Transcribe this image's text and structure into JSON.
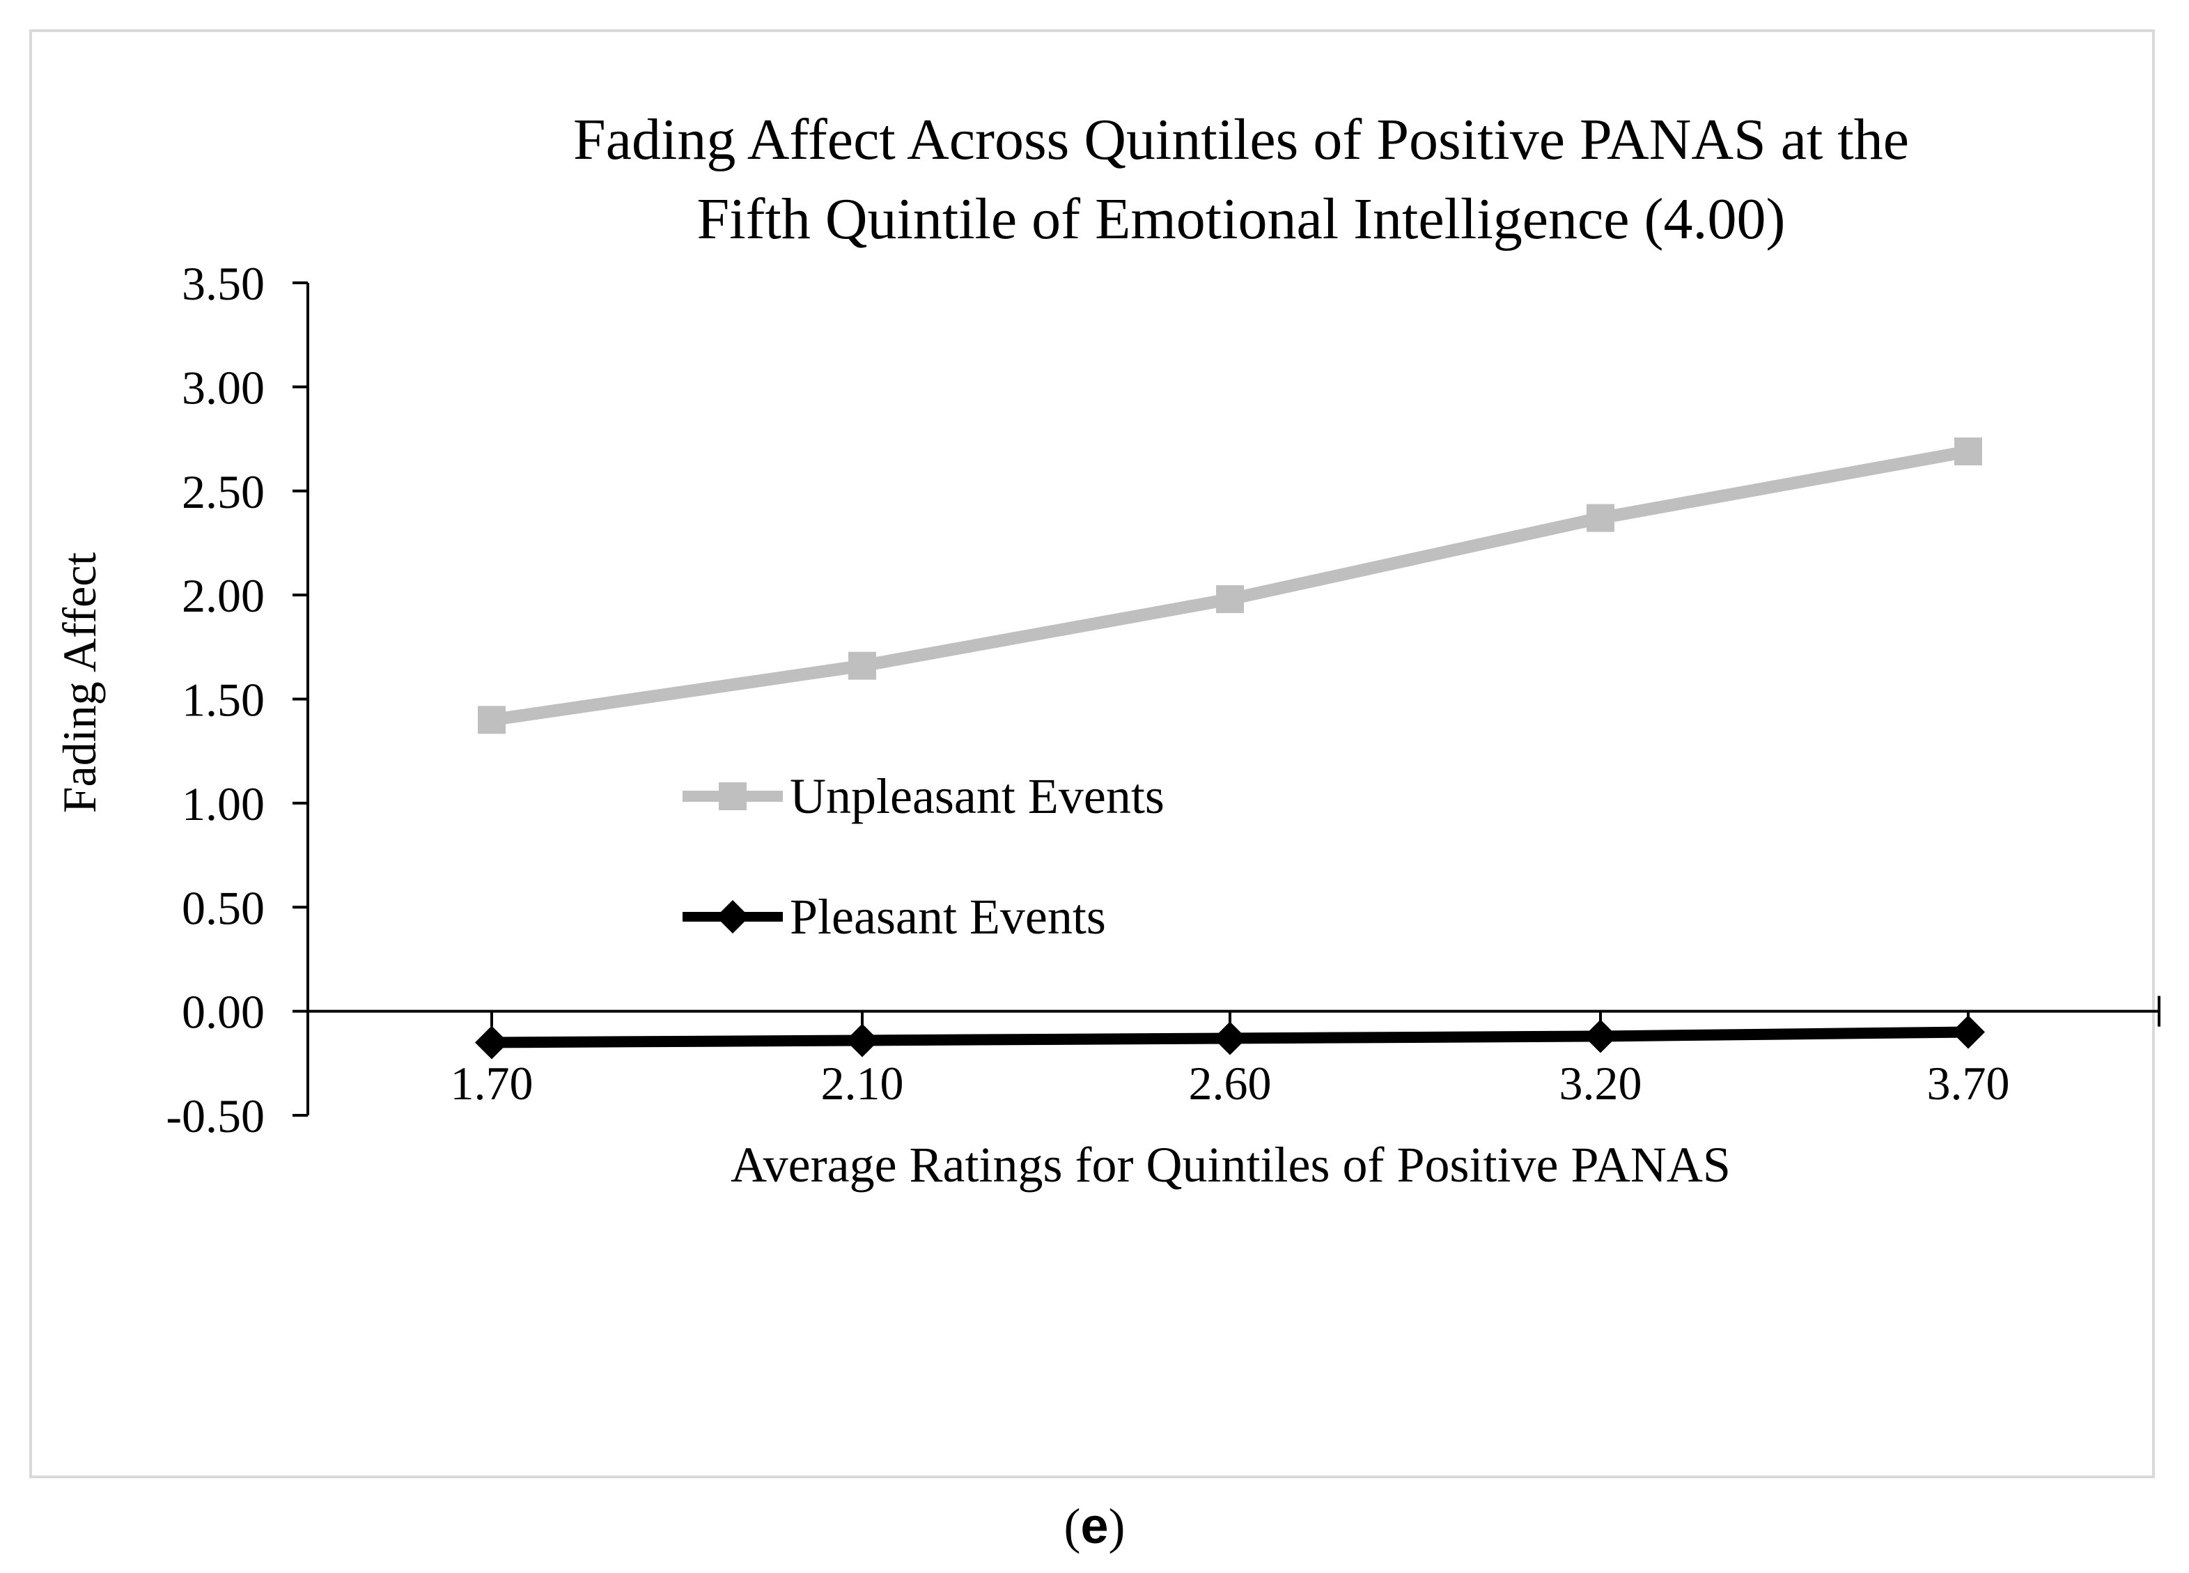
{
  "chart_data": {
    "type": "line",
    "title_lines": [
      "Fading Affect Across Quintiles of Positive PANAS at the",
      "Fifth Quintile of Emotional Intelligence (4.00)"
    ],
    "xlabel": "Average Ratings for Quintiles of Positive PANAS",
    "ylabel": "Fading Affect",
    "categories": [
      "1.70",
      "2.10",
      "2.60",
      "3.20",
      "3.70"
    ],
    "y_ticks": [
      "3.50",
      "3.00",
      "2.50",
      "2.00",
      "1.50",
      "1.00",
      "0.50",
      "0.00",
      "-0.50"
    ],
    "ylim": [
      -0.5,
      3.5
    ],
    "grid": false,
    "legend_position": "center-left",
    "series": [
      {
        "name": "Unpleasant Events",
        "values": [
          1.4,
          1.66,
          1.98,
          2.37,
          2.69
        ],
        "color": "#bfbfbf",
        "marker": "square"
      },
      {
        "name": "Pleasant Events",
        "values": [
          -0.15,
          -0.14,
          -0.13,
          -0.12,
          -0.1
        ],
        "color": "#000000",
        "marker": "diamond"
      }
    ]
  },
  "panel_label": {
    "open": "(",
    "letter": "e",
    "close": ")"
  }
}
